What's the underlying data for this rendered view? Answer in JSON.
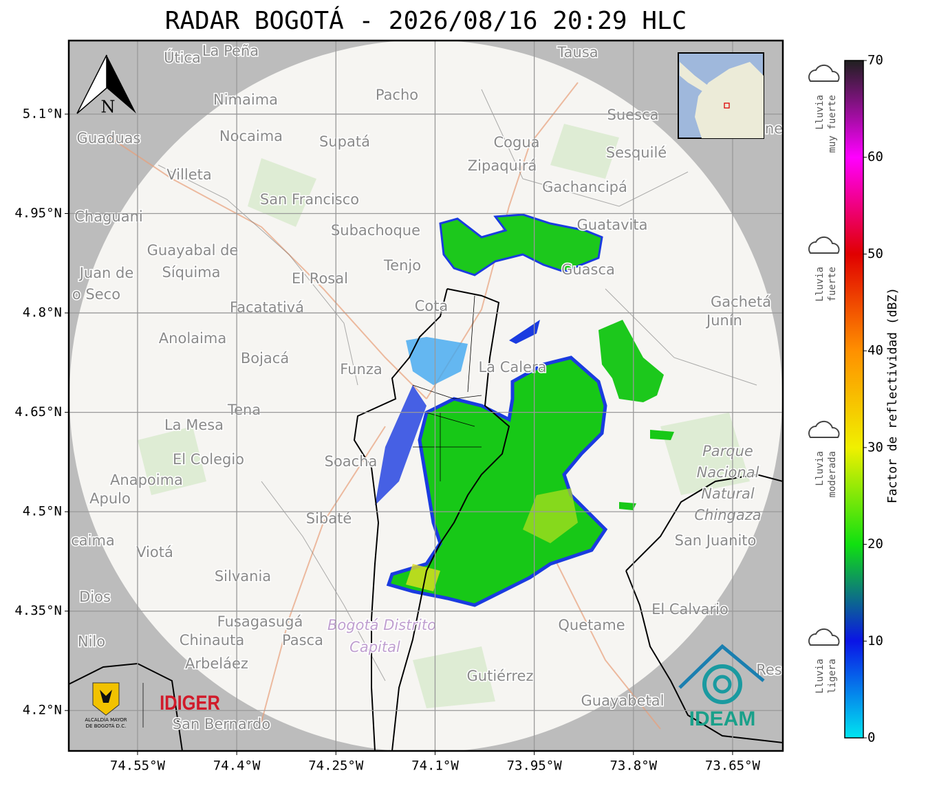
{
  "map": {
    "title": "RADAR BOGOTÁ - 2026/08/16 20:29 HLC",
    "xlim": [
      -74.654,
      -73.574
    ],
    "ylim": [
      4.139,
      5.211
    ],
    "xticks": [
      {
        "value": -74.55,
        "label": "74.55°W"
      },
      {
        "value": -74.4,
        "label": "74.4°W"
      },
      {
        "value": -74.25,
        "label": "74.25°W"
      },
      {
        "value": -74.1,
        "label": "74.1°W"
      },
      {
        "value": -73.95,
        "label": "73.95°W"
      },
      {
        "value": -73.8,
        "label": "73.8°W"
      },
      {
        "value": -73.65,
        "label": "73.65°W"
      }
    ],
    "yticks": [
      {
        "value": 5.1,
        "label": "5.1°N"
      },
      {
        "value": 4.95,
        "label": "4.95°N"
      },
      {
        "value": 4.8,
        "label": "4.8°N"
      },
      {
        "value": 4.65,
        "label": "4.65°N"
      },
      {
        "value": 4.5,
        "label": "4.5°N"
      },
      {
        "value": 4.35,
        "label": "4.35°N"
      },
      {
        "value": 4.2,
        "label": "4.2°N"
      }
    ],
    "grid": true,
    "north_label": "N",
    "places": [
      "Útica",
      "La Peña",
      "Tausa",
      "Pacho",
      "Nimaima",
      "Suesca",
      "Guaduas",
      "Nocaima",
      "Supatá",
      "Cogua",
      "Sesquilé",
      "Zipaquirá",
      "Villeta",
      "Gachancipá",
      "San Francisco",
      "Chaguani",
      "Guatavita",
      "Subachoque",
      "Guayabal de",
      "Síquima",
      "Tenjo",
      "Guasca",
      "El Rosal",
      "Juan de",
      "o Seco",
      "Facatativá",
      "Cota",
      "Gachetá",
      "Junín",
      "Anolaima",
      "Bojacá",
      "Funza",
      "La Calera",
      "Tena",
      "La Mesa",
      "El Colegio",
      "Soacha",
      "Anapoima",
      "Apulo",
      "Sibaté",
      "San Juanito",
      "caima",
      "Viotá",
      "Silvania",
      "Dios",
      "El Calvario",
      "Fusagasugá",
      "Quetame",
      "Nilo",
      "Chinauta",
      "Pasca",
      "Arbeláez",
      "Gutiérrez",
      "Guayabetal",
      "San Bernardo",
      "ne",
      "Res"
    ],
    "park": [
      "Parque",
      "Nacional",
      "Natural",
      "Chingaza"
    ],
    "district": [
      "Bogotá Distrito",
      "Capital"
    ],
    "logos": {
      "alcaldia": [
        "ALCALDÍA MAYOR",
        "DE BOGOTÁ D.C."
      ],
      "idiger": "IDIGER",
      "ideam": "IDEAM"
    }
  },
  "colorbar": {
    "label": "Factor de reflectividad (dBZ)",
    "lim": [
      0,
      70
    ],
    "ticks": [
      0,
      10,
      20,
      30,
      40,
      50,
      60,
      70
    ],
    "colors": [
      "#00e5f0",
      "#0a14e6",
      "#10e010",
      "#f0f000",
      "#ff9000",
      "#e00000",
      "#ff00ff",
      "#202020"
    ],
    "categories": [
      [
        "Lluvia",
        "muy fuerte"
      ],
      [
        "Lluvia",
        "fuerte"
      ],
      [
        "Lluvia",
        "moderada"
      ],
      [
        "Lluvia",
        "ligera"
      ]
    ]
  }
}
